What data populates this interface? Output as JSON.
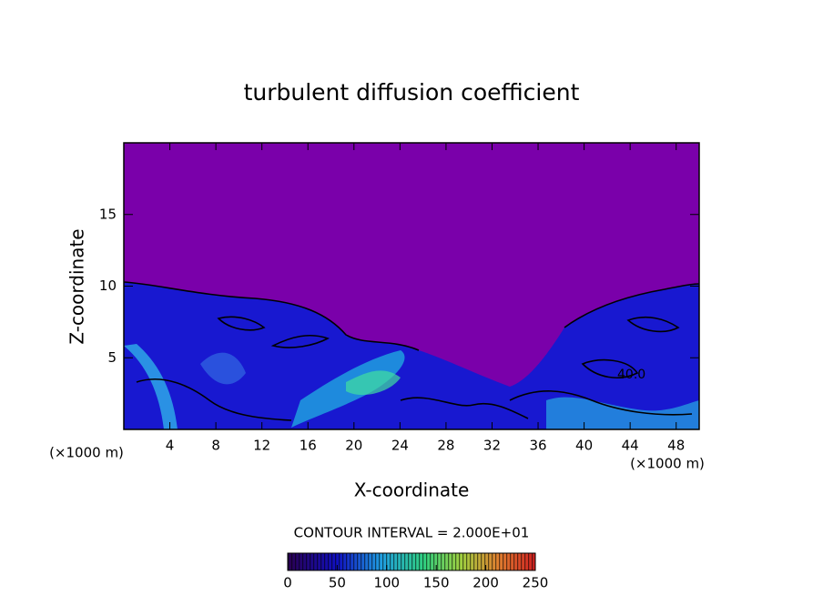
{
  "chart_data": {
    "type": "heatmap",
    "title": "turbulent diffusion coefficient",
    "x_label": "X-coordinate",
    "y_label": "Z-coordinate",
    "x_unit": "(×1000 m)",
    "y_unit": "(×1000 m)",
    "xlim": [
      0,
      50
    ],
    "xticks": [
      4,
      8,
      12,
      16,
      20,
      24,
      28,
      32,
      36,
      40,
      44,
      48
    ],
    "ylim": [
      0,
      20
    ],
    "yticks": [
      5,
      10,
      15
    ],
    "annotations": [
      "40.0"
    ],
    "colorbar": {
      "label": "CONTOUR INTERVAL = 2.000E+01",
      "lim": [
        0,
        250
      ],
      "ticks": [
        0,
        50,
        100,
        150,
        200,
        250
      ]
    }
  }
}
